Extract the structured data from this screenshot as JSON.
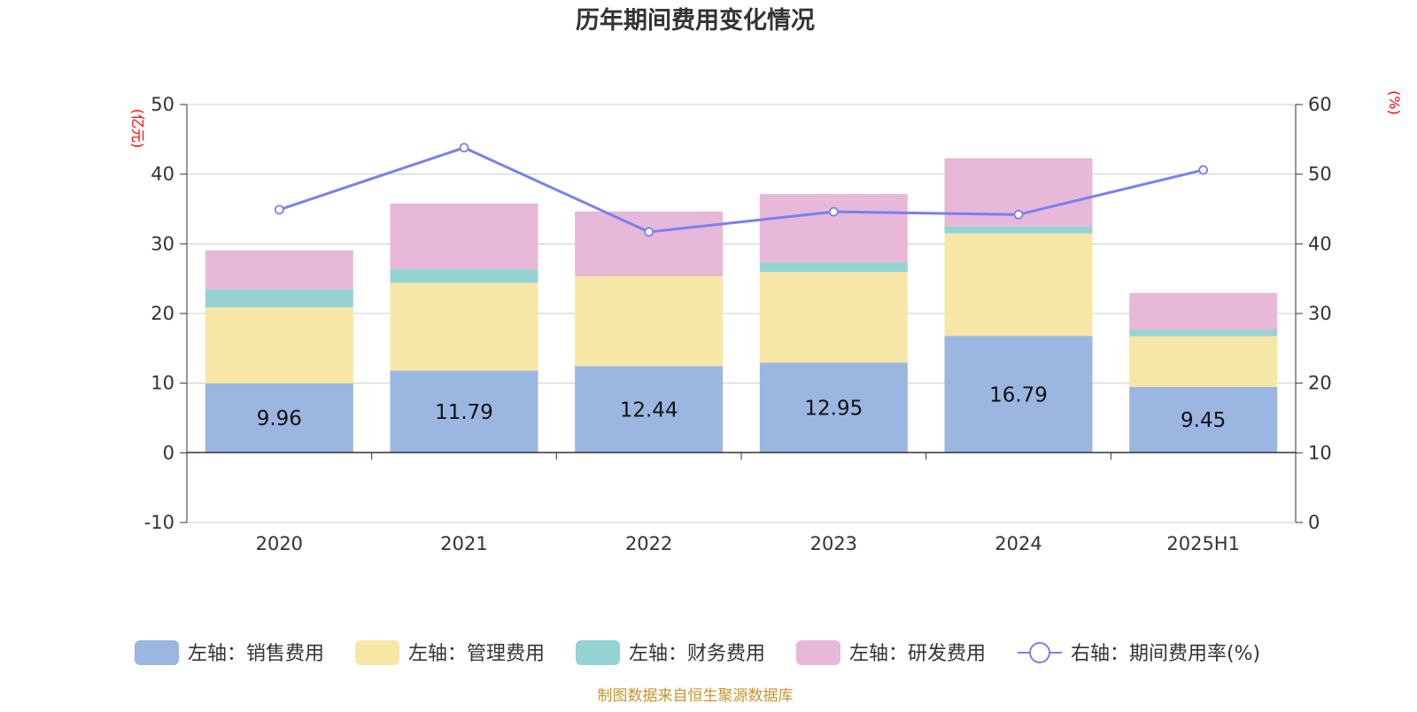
{
  "chart_data": {
    "type": "bar",
    "title": "历年期间费用变化情况",
    "left_axis_unit": "(亿元)",
    "right_axis_unit": "(%)",
    "categories": [
      "2020",
      "2021",
      "2022",
      "2023",
      "2024",
      "2025H1"
    ],
    "left_ylim": [
      -10,
      50
    ],
    "left_yticks": [
      -10,
      0,
      10,
      20,
      30,
      40,
      50
    ],
    "right_ylim": [
      0,
      60
    ],
    "right_yticks": [
      0,
      10,
      20,
      30,
      40,
      50,
      60
    ],
    "grid": true,
    "legend_position": "bottom",
    "stacked_series": [
      {
        "name": "左轴：销售费用",
        "color": "#9bb6e0",
        "values": [
          9.96,
          11.79,
          12.44,
          12.95,
          16.79,
          9.45
        ],
        "data_labels": [
          "9.96",
          "11.79",
          "12.44",
          "12.95",
          "16.79",
          "9.45"
        ]
      },
      {
        "name": "左轴：管理费用",
        "color": "#f7e7a6",
        "values": [
          10.9,
          12.6,
          12.9,
          13.0,
          14.7,
          7.3
        ]
      },
      {
        "name": "左轴：财务费用",
        "color": "#95d3d3",
        "values": [
          2.6,
          2.0,
          0.0,
          1.4,
          1.0,
          0.9
        ]
      },
      {
        "name": "左轴：研发费用",
        "color": "#e7b8d8",
        "values": [
          5.6,
          9.4,
          9.3,
          9.8,
          9.8,
          5.3
        ]
      }
    ],
    "line_series": {
      "name": "右轴：期间费用率(%)",
      "color": "#7b7ff0",
      "axis": "right",
      "values": [
        44.9,
        53.8,
        41.7,
        44.6,
        44.2,
        50.6
      ]
    }
  },
  "footer": {
    "source": "制图数据来自恒生聚源数据库"
  }
}
